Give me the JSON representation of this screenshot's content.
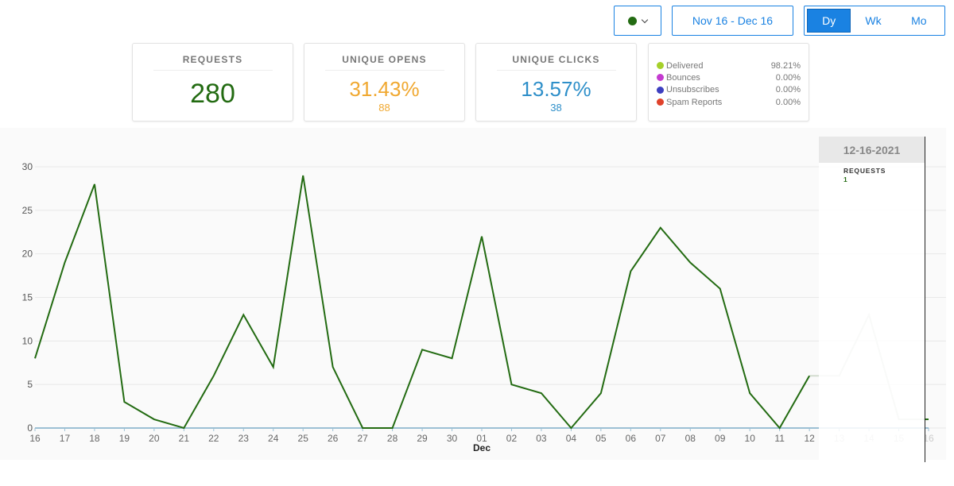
{
  "controls": {
    "color_dot": "#236b12",
    "date_range": "Nov 16 - Dec 16",
    "periods": [
      {
        "label": "Dy",
        "active": true
      },
      {
        "label": "Wk",
        "active": false
      },
      {
        "label": "Mo",
        "active": false
      }
    ]
  },
  "cards": {
    "requests": {
      "label": "REQUESTS",
      "value": "280",
      "color": "#236b12"
    },
    "opens": {
      "label": "UNIQUE OPENS",
      "value": "31.43%",
      "sub": "88",
      "color": "#f0a830"
    },
    "clicks": {
      "label": "UNIQUE CLICKS",
      "value": "13.57%",
      "sub": "38",
      "color": "#2e8fc9"
    }
  },
  "legend": [
    {
      "name": "Delivered",
      "pct": "98.21%",
      "color": "#a5d02a"
    },
    {
      "name": "Bounces",
      "pct": "0.00%",
      "color": "#c43bd0"
    },
    {
      "name": "Unsubscribes",
      "pct": "0.00%",
      "color": "#3d3fc0"
    },
    {
      "name": "Spam Reports",
      "pct": "0.00%",
      "color": "#e0422b"
    }
  ],
  "tooltip": {
    "date": "12-16-2021",
    "metric": "REQUESTS",
    "value": "1"
  },
  "chart_data": {
    "type": "line",
    "x": [
      "16",
      "17",
      "18",
      "19",
      "20",
      "21",
      "22",
      "23",
      "24",
      "25",
      "26",
      "27",
      "28",
      "29",
      "30",
      "01",
      "02",
      "03",
      "04",
      "05",
      "06",
      "07",
      "08",
      "09",
      "10",
      "11",
      "12",
      "13",
      "14",
      "15",
      "16"
    ],
    "month_label": "Dec",
    "month_label_at": "01",
    "series": [
      {
        "name": "Requests",
        "color": "#236b12",
        "values": [
          8,
          19,
          28,
          3,
          1,
          0,
          6,
          13,
          7,
          29,
          7,
          0,
          0,
          9,
          8,
          22,
          5,
          4,
          0,
          4,
          18,
          23,
          19,
          16,
          4,
          0,
          6,
          6,
          13,
          1,
          1
        ]
      }
    ],
    "baseline_color": "#9cc0d4",
    "ylim": [
      0,
      30
    ],
    "yticks": [
      0,
      5,
      10,
      15,
      20,
      25,
      30
    ],
    "highlight_from_index": 27,
    "highlight_color": "#d3dcd0"
  }
}
